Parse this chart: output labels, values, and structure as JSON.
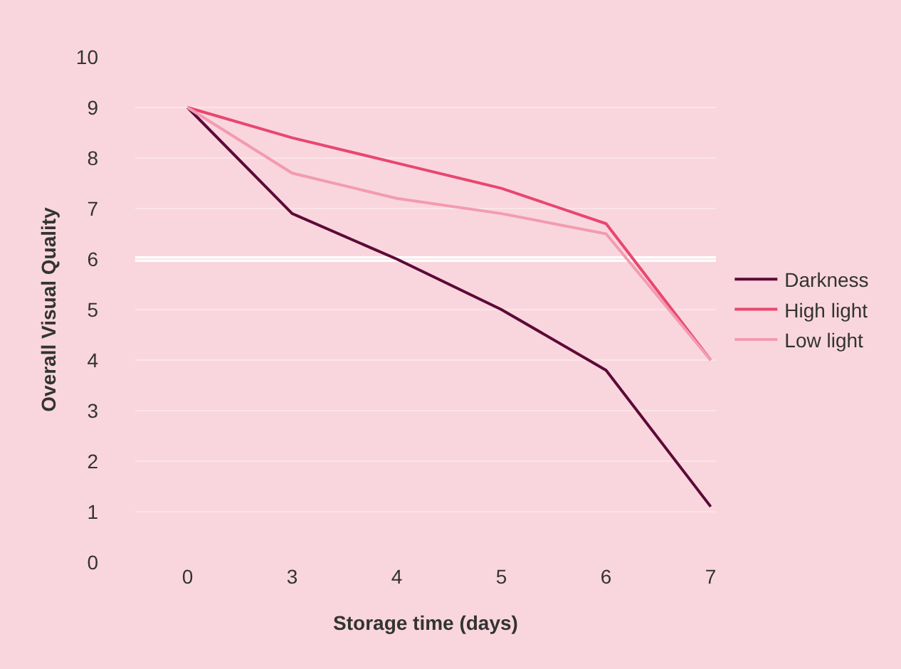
{
  "chart_data": {
    "type": "line",
    "xlabel": "Storage time (days)",
    "ylabel": "Overall Visual Quality",
    "categories": [
      "0",
      "3",
      "4",
      "5",
      "6",
      "7"
    ],
    "series": [
      {
        "name": "Darkness",
        "color": "#5c0a38",
        "values": [
          9,
          6.9,
          6.0,
          5.0,
          3.8,
          1.1
        ]
      },
      {
        "name": "High light",
        "color": "#e8476f",
        "values": [
          9,
          8.4,
          7.9,
          7.4,
          6.7,
          4.0
        ]
      },
      {
        "name": "Low light",
        "color": "#f29bb1",
        "values": [
          9,
          7.7,
          7.2,
          6.9,
          6.5,
          4.0
        ]
      }
    ],
    "ylim": [
      0,
      10
    ],
    "yticks": [
      0,
      1,
      2,
      3,
      4,
      5,
      6,
      7,
      8,
      9,
      10
    ],
    "grid": "y",
    "legend": "right",
    "marker": "none",
    "line_style": "solid",
    "ref_lines": [
      {
        "axis": "y",
        "value": 6,
        "color": "#ffffff"
      }
    ]
  }
}
